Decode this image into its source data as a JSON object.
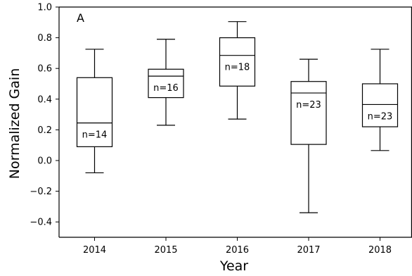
{
  "chart_data": {
    "type": "boxplot",
    "panel_label": "A",
    "xlabel": "Year",
    "ylabel": "Normalized Gain",
    "ylim": [
      -0.5,
      1.0
    ],
    "yticks": [
      -0.4,
      -0.2,
      0.0,
      0.2,
      0.4,
      0.6,
      0.8,
      1.0
    ],
    "ytick_labels": [
      "−0.4",
      "−0.2",
      "0.0",
      "0.2",
      "0.4",
      "0.6",
      "0.8",
      "1.0"
    ],
    "categories": [
      "2014",
      "2015",
      "2016",
      "2017",
      "2018"
    ],
    "boxes": [
      {
        "category": "2014",
        "whisker_low": -0.08,
        "q1": 0.09,
        "median": 0.245,
        "q3": 0.54,
        "whisker_high": 0.725,
        "n_label": "n=14"
      },
      {
        "category": "2015",
        "whisker_low": 0.23,
        "q1": 0.41,
        "median": 0.55,
        "q3": 0.595,
        "whisker_high": 0.79,
        "n_label": "n=16"
      },
      {
        "category": "2016",
        "whisker_low": 0.27,
        "q1": 0.485,
        "median": 0.685,
        "q3": 0.8,
        "whisker_high": 0.905,
        "n_label": "n=18"
      },
      {
        "category": "2017",
        "whisker_low": -0.34,
        "q1": 0.105,
        "median": 0.44,
        "q3": 0.515,
        "whisker_high": 0.66,
        "n_label": "n=23"
      },
      {
        "category": "2018",
        "whisker_low": 0.065,
        "q1": 0.22,
        "median": 0.365,
        "q3": 0.5,
        "whisker_high": 0.725,
        "n_label": "n=23"
      }
    ],
    "grid": false,
    "colors": {
      "box_edge": "#000000",
      "box_fill": "#ffffff",
      "axis": "#000000"
    }
  }
}
